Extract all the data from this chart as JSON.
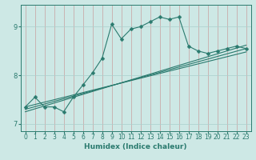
{
  "xlabel": "Humidex (Indice chaleur)",
  "ylabel": "",
  "bg_color": "#cde8e5",
  "line_color": "#2a7a6e",
  "grid_color": "#aacfcc",
  "xlim": [
    -0.5,
    23.5
  ],
  "ylim": [
    6.85,
    9.45
  ],
  "xticks": [
    0,
    1,
    2,
    3,
    4,
    5,
    6,
    7,
    8,
    9,
    10,
    11,
    12,
    13,
    14,
    15,
    16,
    17,
    18,
    19,
    20,
    21,
    22,
    23
  ],
  "yticks": [
    7,
    8,
    9
  ],
  "main_curve": {
    "x": [
      0,
      1,
      2,
      3,
      4,
      5,
      6,
      7,
      8,
      9,
      10,
      11,
      12,
      13,
      14,
      15,
      16,
      17,
      18,
      19,
      20,
      21,
      22,
      23
    ],
    "y": [
      7.35,
      7.55,
      7.35,
      7.35,
      7.25,
      7.55,
      7.8,
      8.05,
      8.35,
      9.05,
      8.75,
      8.95,
      9.0,
      9.1,
      9.2,
      9.15,
      9.2,
      8.6,
      8.5,
      8.45,
      8.5,
      8.55,
      8.6,
      8.55
    ]
  },
  "linear_lines": [
    {
      "x": [
        0,
        23
      ],
      "y": [
        7.3,
        8.55
      ]
    },
    {
      "x": [
        0,
        23
      ],
      "y": [
        7.25,
        8.62
      ]
    },
    {
      "x": [
        0,
        23
      ],
      "y": [
        7.35,
        8.48
      ]
    }
  ],
  "tick_fontsize": 5.5,
  "xlabel_fontsize": 6.5
}
